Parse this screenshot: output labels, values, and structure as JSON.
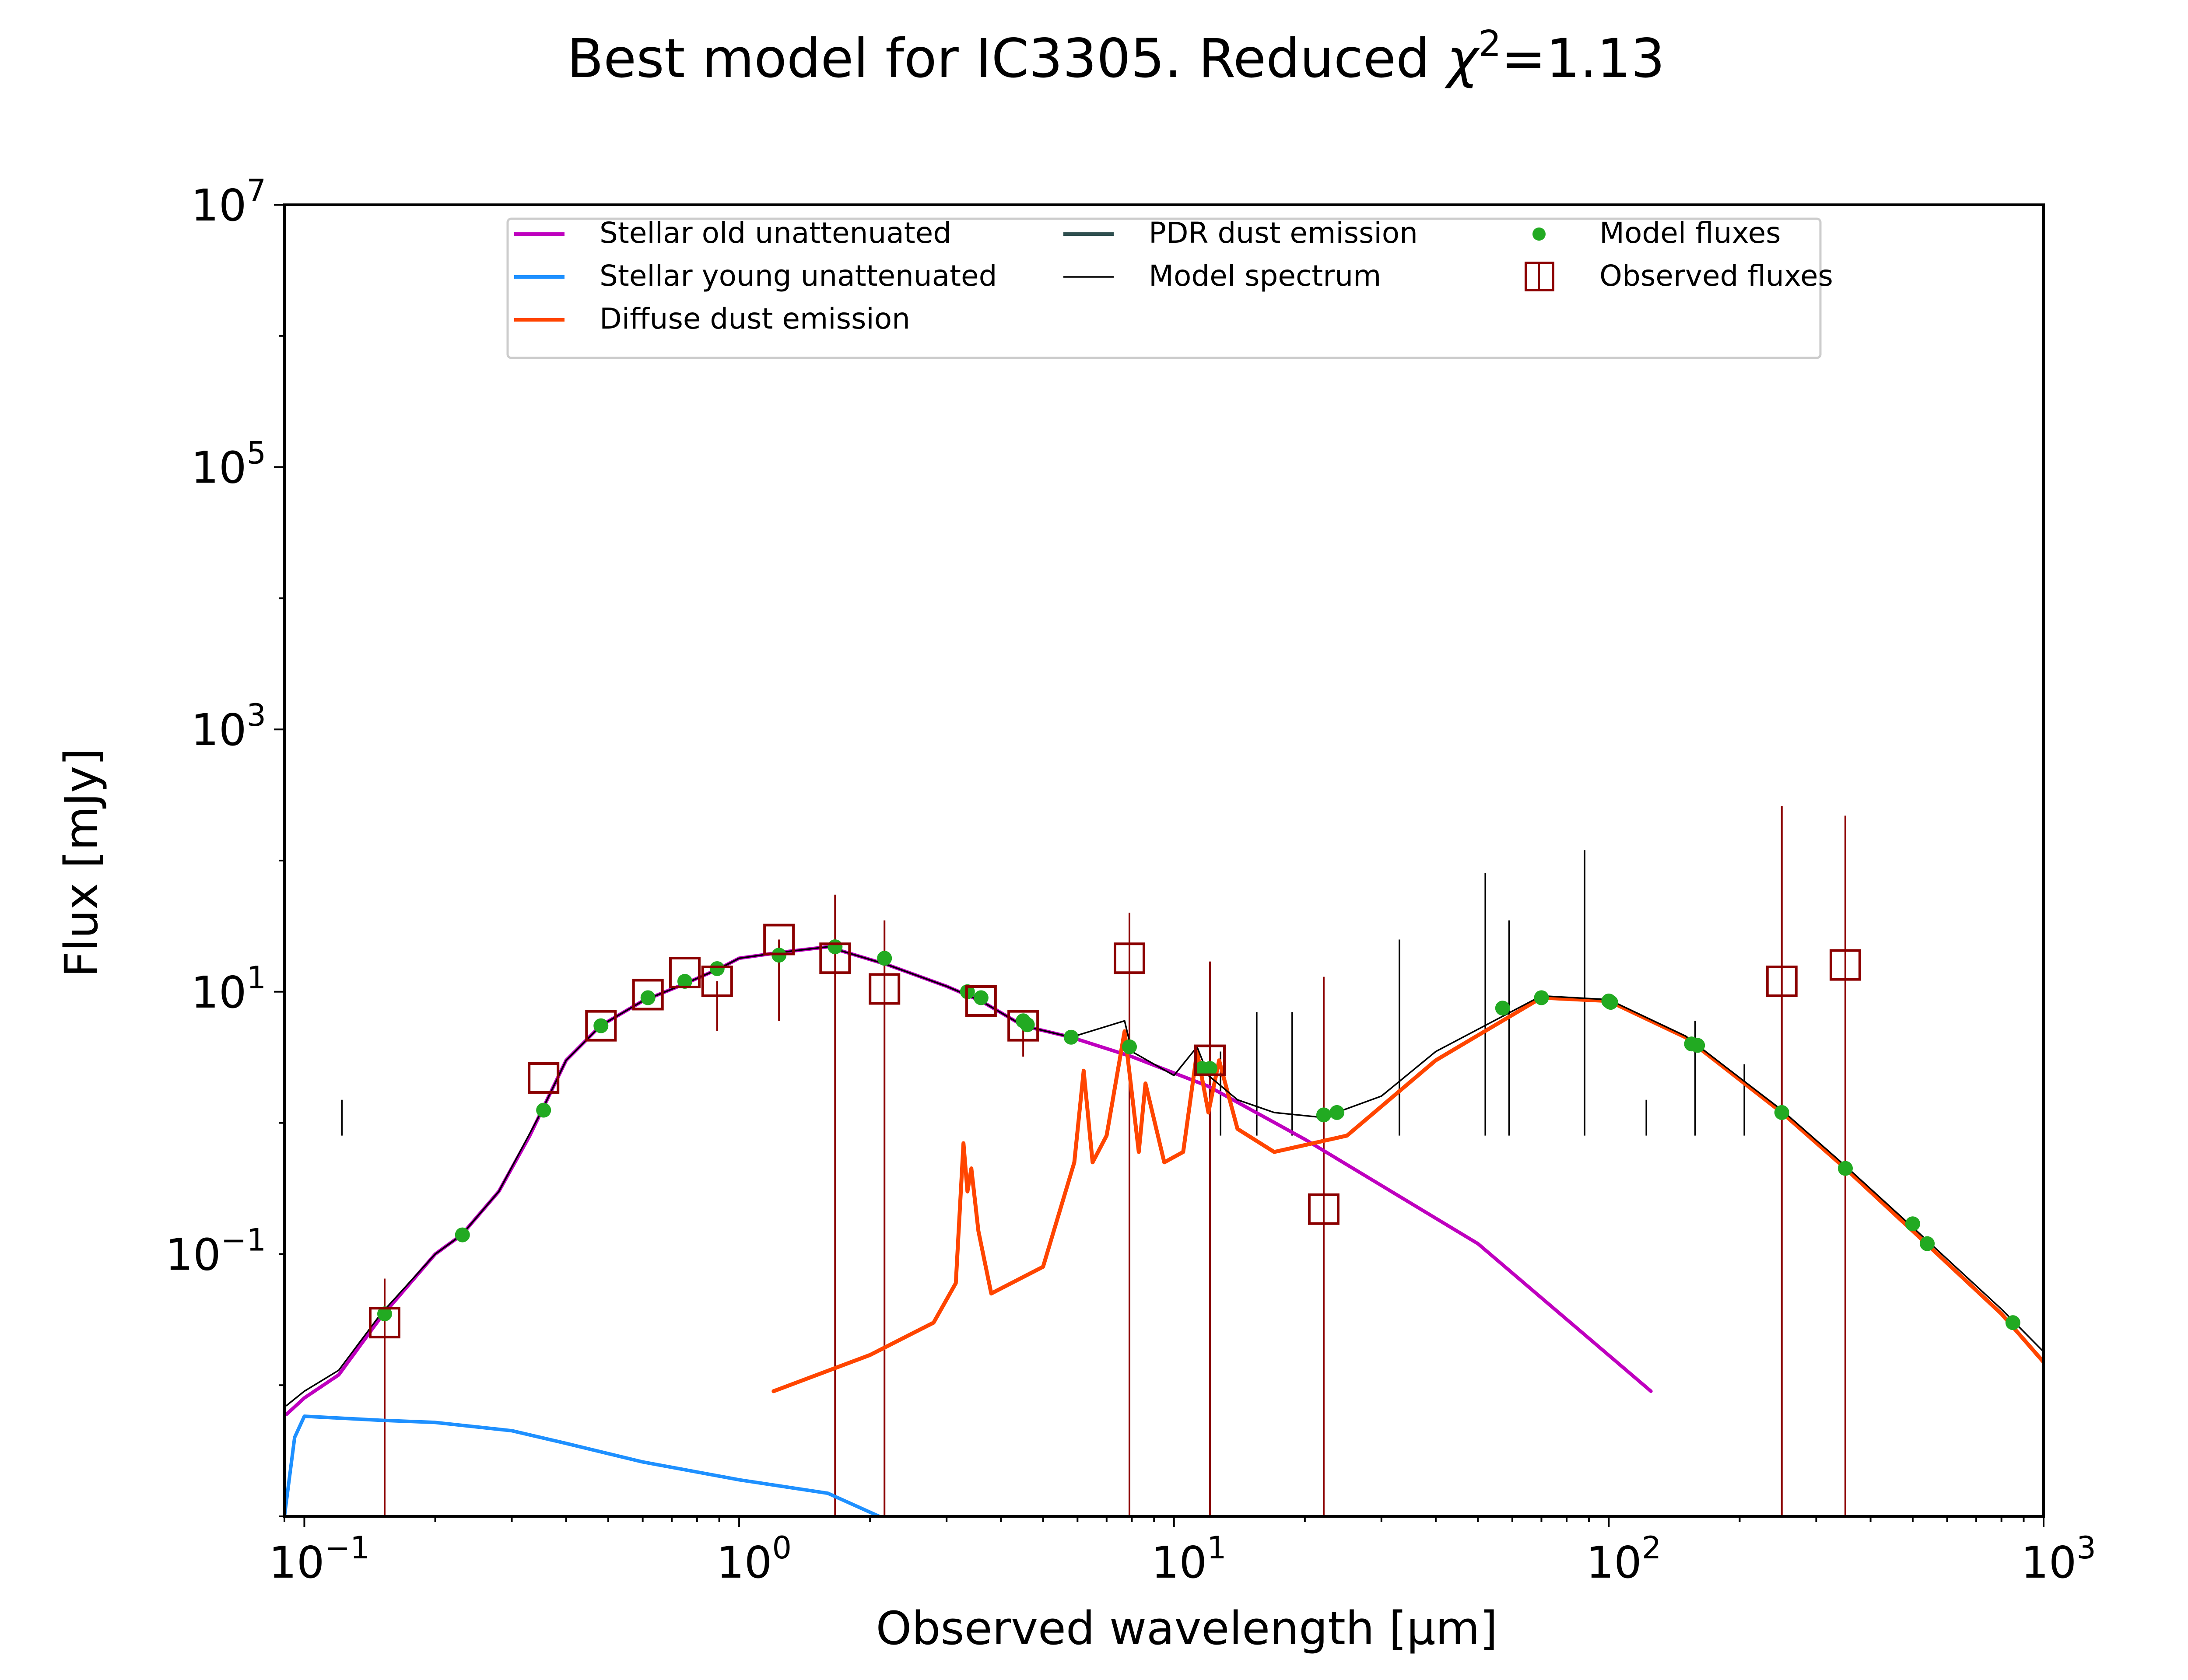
{
  "chart_data": {
    "type": "line",
    "title_prefix": "Best model for IC3305. Reduced ",
    "title_chi": "χ",
    "title_exp": "2",
    "title_suffix": "=1.13",
    "xlabel": "Observed wavelength [μm]",
    "ylabel": "Flux [mJy]",
    "xscale": "log",
    "yscale": "log",
    "xlim": [
      0.09,
      1000
    ],
    "ylim": [
      0.001,
      10000000
    ],
    "grid": false,
    "legend_position": "upper-center",
    "x_ticks": [
      {
        "base": "10",
        "exp": "−1",
        "value": 0.1
      },
      {
        "base": "10",
        "exp": "0",
        "value": 1
      },
      {
        "base": "10",
        "exp": "1",
        "value": 10
      },
      {
        "base": "10",
        "exp": "2",
        "value": 100
      },
      {
        "base": "10",
        "exp": "3",
        "value": 1000
      }
    ],
    "y_ticks": [
      {
        "base": "10",
        "exp": "−1",
        "value": 0.1
      },
      {
        "base": "10",
        "exp": "1",
        "value": 10
      },
      {
        "base": "10",
        "exp": "3",
        "value": 1000
      },
      {
        "base": "10",
        "exp": "5",
        "value": 100000
      },
      {
        "base": "10",
        "exp": "7",
        "value": 10000000
      }
    ],
    "colors": {
      "stellar_old": "#bf00bf",
      "stellar_young": "#1e90ff",
      "diffuse_dust": "#ff4500",
      "pdr_dust": "#2f4f4f",
      "model_spectrum": "#000000",
      "model_fluxes": "#22aa22",
      "observed_fluxes": "#8b0000"
    },
    "legend": [
      {
        "label": "Stellar old unattenuated",
        "key": "stellar_old",
        "marker": "line"
      },
      {
        "label": "Stellar young unattenuated",
        "key": "stellar_young",
        "marker": "line"
      },
      {
        "label": "Diffuse dust emission",
        "key": "diffuse_dust",
        "marker": "line"
      },
      {
        "label": "PDR dust emission",
        "key": "pdr_dust",
        "marker": "line"
      },
      {
        "label": "Model spectrum",
        "key": "model_spectrum",
        "marker": "thinline"
      },
      {
        "label": "Model fluxes",
        "key": "model_fluxes",
        "marker": "dot"
      },
      {
        "label": "Observed fluxes",
        "key": "observed_fluxes",
        "marker": "square"
      }
    ],
    "series": [
      {
        "key": "stellar_old",
        "points": [
          [
            0.091,
            0.006
          ],
          [
            0.1,
            0.008
          ],
          [
            0.12,
            0.012
          ],
          [
            0.15,
            0.033
          ],
          [
            0.2,
            0.1
          ],
          [
            0.23,
            0.14
          ],
          [
            0.28,
            0.3
          ],
          [
            0.33,
            0.8
          ],
          [
            0.35,
            1.2
          ],
          [
            0.4,
            3.0
          ],
          [
            0.48,
            5.5
          ],
          [
            0.6,
            8.5
          ],
          [
            0.75,
            11.5
          ],
          [
            0.9,
            15
          ],
          [
            1.0,
            18
          ],
          [
            1.25,
            20
          ],
          [
            1.6,
            22
          ],
          [
            2.2,
            16
          ],
          [
            3.0,
            11
          ],
          [
            3.6,
            8.5
          ],
          [
            4.5,
            5.5
          ],
          [
            5.8,
            4.5
          ],
          [
            8.0,
            3.2
          ],
          [
            12,
            1.9
          ],
          [
            20,
            0.75
          ],
          [
            50,
            0.12
          ],
          [
            125,
            0.009
          ]
        ]
      },
      {
        "key": "stellar_young",
        "points": [
          [
            0.09,
            0.001
          ],
          [
            0.095,
            0.004
          ],
          [
            0.1,
            0.0058
          ],
          [
            0.15,
            0.0054
          ],
          [
            0.2,
            0.0052
          ],
          [
            0.3,
            0.0045
          ],
          [
            0.4,
            0.0036
          ],
          [
            0.6,
            0.0026
          ],
          [
            1.0,
            0.0019
          ],
          [
            1.6,
            0.0015
          ],
          [
            2.1,
            0.001
          ]
        ]
      },
      {
        "key": "diffuse_dust",
        "points": [
          [
            1.2,
            0.009
          ],
          [
            2.0,
            0.017
          ],
          [
            2.8,
            0.03
          ],
          [
            3.15,
            0.06
          ],
          [
            3.28,
            0.7
          ],
          [
            3.35,
            0.3
          ],
          [
            3.42,
            0.45
          ],
          [
            3.55,
            0.15
          ],
          [
            3.8,
            0.05
          ],
          [
            5.0,
            0.08
          ],
          [
            5.9,
            0.5
          ],
          [
            6.2,
            2.5
          ],
          [
            6.5,
            0.5
          ],
          [
            7.0,
            0.8
          ],
          [
            7.7,
            5.0
          ],
          [
            8.3,
            0.6
          ],
          [
            8.6,
            2.0
          ],
          [
            9.5,
            0.5
          ],
          [
            10.5,
            0.6
          ],
          [
            11.3,
            3.5
          ],
          [
            12.0,
            1.2
          ],
          [
            12.7,
            3.0
          ],
          [
            14,
            0.9
          ],
          [
            17,
            0.6
          ],
          [
            25,
            0.8
          ],
          [
            40,
            3.0
          ],
          [
            70,
            9.0
          ],
          [
            100,
            8.5
          ],
          [
            150,
            4.5
          ],
          [
            250,
            1.2
          ],
          [
            350,
            0.45
          ],
          [
            500,
            0.15
          ],
          [
            800,
            0.035
          ],
          [
            1000,
            0.015
          ]
        ]
      },
      {
        "key": "model_spectrum",
        "points": [
          [
            0.091,
            0.007
          ],
          [
            0.1,
            0.009
          ],
          [
            0.12,
            0.013
          ],
          [
            0.15,
            0.035
          ],
          [
            0.2,
            0.1
          ],
          [
            0.23,
            0.14
          ],
          [
            0.28,
            0.3
          ],
          [
            0.35,
            1.2
          ],
          [
            0.4,
            3.0
          ],
          [
            0.48,
            5.5
          ],
          [
            0.6,
            8.5
          ],
          [
            0.75,
            11.5
          ],
          [
            0.9,
            15
          ],
          [
            1.0,
            18
          ],
          [
            1.25,
            20
          ],
          [
            1.6,
            22
          ],
          [
            2.2,
            16
          ],
          [
            3.0,
            11
          ],
          [
            3.6,
            8.5
          ],
          [
            4.5,
            5.5
          ],
          [
            5.8,
            4.5
          ],
          [
            7.7,
            6.0
          ],
          [
            8.0,
            3.5
          ],
          [
            10,
            2.3
          ],
          [
            11.3,
            3.8
          ],
          [
            12,
            2.3
          ],
          [
            14,
            1.5
          ],
          [
            17,
            1.2
          ],
          [
            22,
            1.1
          ],
          [
            30,
            1.6
          ],
          [
            40,
            3.5
          ],
          [
            70,
            9.3
          ],
          [
            100,
            8.7
          ],
          [
            150,
            4.6
          ],
          [
            250,
            1.25
          ],
          [
            350,
            0.47
          ],
          [
            500,
            0.16
          ],
          [
            800,
            0.038
          ],
          [
            1000,
            0.018
          ]
        ]
      }
    ],
    "model_spectrum_lines": [
      [
        0.122,
        1.5
      ],
      [
        33,
        25
      ],
      [
        52,
        80
      ],
      [
        59,
        35
      ],
      [
        88,
        120
      ],
      [
        122,
        1.5
      ],
      [
        158,
        6
      ],
      [
        205,
        2.8
      ],
      [
        15.5,
        7
      ],
      [
        18.7,
        7
      ],
      [
        12.8,
        3.5
      ]
    ],
    "model_fluxes": [
      [
        0.153,
        0.035
      ],
      [
        0.231,
        0.14
      ],
      [
        0.355,
        1.25
      ],
      [
        0.481,
        5.5
      ],
      [
        0.617,
        9.0
      ],
      [
        0.75,
        12
      ],
      [
        0.89,
        15
      ],
      [
        1.235,
        19
      ],
      [
        1.662,
        22
      ],
      [
        2.159,
        18
      ],
      [
        3.35,
        10
      ],
      [
        3.6,
        9
      ],
      [
        4.5,
        6.0
      ],
      [
        4.6,
        5.6
      ],
      [
        5.8,
        4.5
      ],
      [
        7.9,
        3.8
      ],
      [
        11.6,
        2.6
      ],
      [
        12.1,
        2.6
      ],
      [
        22.1,
        1.15
      ],
      [
        23.7,
        1.2
      ],
      [
        57,
        7.5
      ],
      [
        70,
        9.0
      ],
      [
        100,
        8.5
      ],
      [
        101,
        8.3
      ],
      [
        155,
        4.0
      ],
      [
        160,
        3.9
      ],
      [
        250,
        1.2
      ],
      [
        350,
        0.45
      ],
      [
        500,
        0.17
      ],
      [
        540,
        0.12
      ],
      [
        850,
        0.03
      ]
    ],
    "observed_fluxes": [
      {
        "x": 0.153,
        "y": 0.03,
        "lo": 0.001,
        "hi": 0.065
      },
      {
        "x": 0.355,
        "y": 2.2,
        "lo": null,
        "hi": null
      },
      {
        "x": 0.481,
        "y": 5.5,
        "lo": null,
        "hi": null
      },
      {
        "x": 0.617,
        "y": 9.5,
        "lo": null,
        "hi": null
      },
      {
        "x": 0.75,
        "y": 14,
        "lo": null,
        "hi": null
      },
      {
        "x": 0.89,
        "y": 12,
        "lo": 5,
        "hi": null
      },
      {
        "x": 1.235,
        "y": 25,
        "lo": 6,
        "hi": null
      },
      {
        "x": 1.662,
        "y": 18,
        "lo": 0.001,
        "hi": 55
      },
      {
        "x": 2.159,
        "y": 10.5,
        "lo": 0.001,
        "hi": 35
      },
      {
        "x": 3.6,
        "y": 8.5,
        "lo": null,
        "hi": null
      },
      {
        "x": 4.5,
        "y": 5.5,
        "lo": 3.2,
        "hi": null
      },
      {
        "x": 7.9,
        "y": 18,
        "lo": 0.001,
        "hi": 40
      },
      {
        "x": 12.1,
        "y": 3.0,
        "lo": 0.001,
        "hi": 17
      },
      {
        "x": 22.1,
        "y": 0.22,
        "lo": 0.001,
        "hi": 13
      },
      {
        "x": 250,
        "y": 12,
        "lo": 0.001,
        "hi": 260
      },
      {
        "x": 350,
        "y": 16,
        "lo": 0.001,
        "hi": 220
      }
    ]
  }
}
